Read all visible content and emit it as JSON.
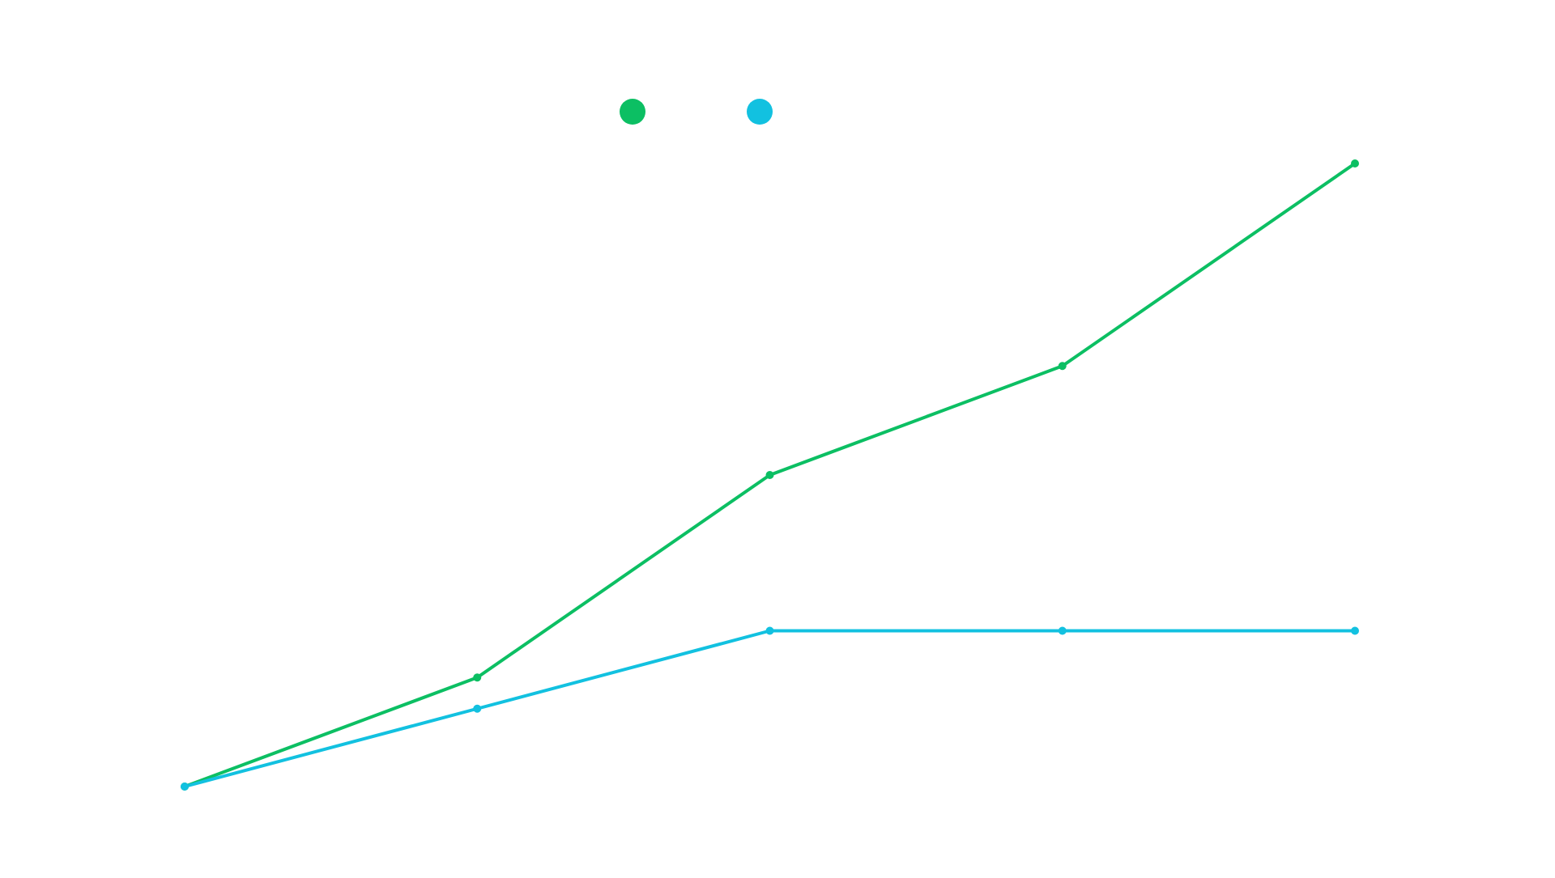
{
  "chart_data": {
    "type": "line",
    "categories": [
      null,
      null,
      null,
      null,
      null
    ],
    "series": [
      {
        "color": "#0cbf63",
        "values": [
          0,
          17.5,
          50,
          67.5,
          100
        ]
      },
      {
        "color": "#12c1e0",
        "values": [
          0,
          12.5,
          25,
          25,
          25
        ]
      }
    ],
    "ylim": [
      0,
      100
    ]
  }
}
